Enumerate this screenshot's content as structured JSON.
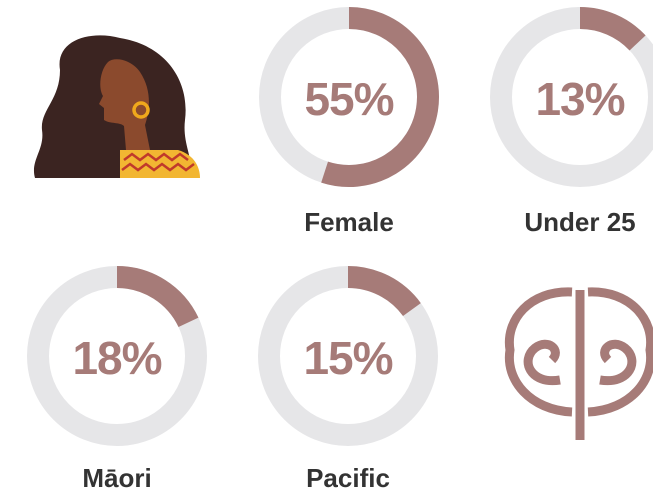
{
  "chart_data": [
    {
      "type": "donut",
      "title": "Female",
      "values": [
        55
      ],
      "value_labels": [
        "55%"
      ],
      "ylim": [
        0,
        100
      ],
      "color": "#a67b78",
      "track_color": "#e6e6e8"
    },
    {
      "type": "donut",
      "title": "Under 25",
      "values": [
        13
      ],
      "value_labels": [
        "13%"
      ],
      "ylim": [
        0,
        100
      ],
      "color": "#a67b78",
      "track_color": "#e6e6e8"
    },
    {
      "type": "donut",
      "title": "Māori",
      "values": [
        18
      ],
      "value_labels": [
        "18%"
      ],
      "ylim": [
        0,
        100
      ],
      "color": "#a67b78",
      "track_color": "#e6e6e8"
    },
    {
      "type": "donut",
      "title": "Pacific",
      "values": [
        15
      ],
      "value_labels": [
        "15%"
      ],
      "ylim": [
        0,
        100
      ],
      "color": "#a67b78",
      "track_color": "#e6e6e8"
    }
  ]
}
